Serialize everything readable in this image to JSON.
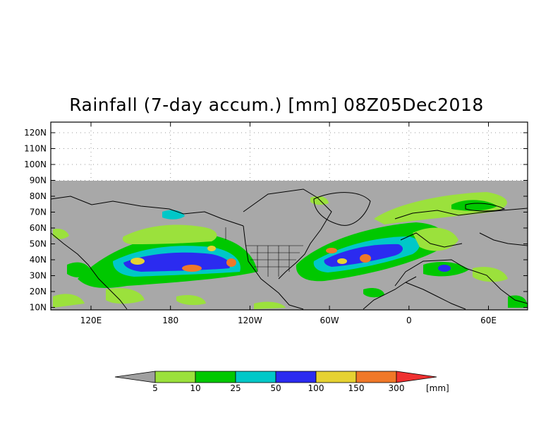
{
  "title": "Rainfall (7-day accum.) [mm] 08Z05Dec2018",
  "lat_ticks": [
    "120N",
    "110N",
    "100N",
    "90N",
    "80N",
    "70N",
    "60N",
    "50N",
    "40N",
    "30N",
    "20N",
    "10N"
  ],
  "lon_ticks": [
    "120E",
    "180",
    "120W",
    "60W",
    "0",
    "60E"
  ],
  "colorbar": {
    "labels": [
      "5",
      "10",
      "25",
      "50",
      "100",
      "150",
      "300"
    ],
    "unit": "[mm]",
    "colors": [
      "#a0a0a0",
      "#9be13c",
      "#00c800",
      "#00c8c8",
      "#2b2bf0",
      "#e6d232",
      "#f07828",
      "#ef3030"
    ]
  },
  "map_colors": {
    "land_background": "#a8a8a8",
    "coast_lines": "#000000"
  }
}
